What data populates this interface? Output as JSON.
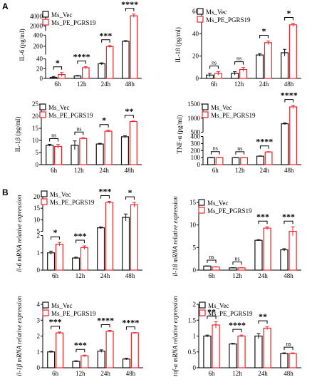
{
  "panel_labels": [
    "A",
    "B"
  ],
  "colors": {
    "vec": "#111111",
    "pe": "#e8262a"
  },
  "legend": {
    "vec": "Ms_Vec",
    "pe": "Ms_PE_PGRS19"
  },
  "chart_data": [
    {
      "type": "bar",
      "id": "il6",
      "ylabel": "IL-6 (pg/ml)",
      "categories": [
        "6h",
        "12h",
        "24h",
        "48h"
      ],
      "series": [
        {
          "name": "Ms_Vec",
          "values": [
            2,
            5,
            30,
            290
          ],
          "errors": [
            2,
            1,
            2,
            12
          ]
        },
        {
          "name": "Ms_PE_PGRS19",
          "values": [
            8,
            22,
            195,
            4100
          ],
          "errors": [
            4,
            2,
            20,
            350
          ]
        }
      ],
      "y_break": {
        "segments": [
          [
            0,
            40
          ],
          [
            50,
            400
          ],
          [
            1000,
            5000
          ]
        ]
      },
      "yticks": [
        0,
        20,
        40,
        200,
        400,
        2000,
        4000
      ],
      "significance": [
        "*",
        "****",
        "***",
        "****"
      ]
    },
    {
      "type": "bar",
      "id": "il18",
      "ylabel": "IL-18 (pg/ml)",
      "categories": [
        "6h",
        "12h",
        "24h",
        "48h"
      ],
      "series": [
        {
          "name": "Ms_Vec",
          "values": [
            3,
            4.5,
            21,
            23
          ],
          "errors": [
            1.5,
            1.5,
            1.2,
            3
          ]
        },
        {
          "name": "Ms_PE_PGRS19",
          "values": [
            4.5,
            8,
            32,
            48
          ],
          "errors": [
            1.5,
            1.8,
            1.5,
            1.5
          ]
        }
      ],
      "ylim": [
        0,
        60
      ],
      "yticks": [
        0,
        20,
        40,
        60
      ],
      "significance": [
        "ns",
        "ns",
        "*",
        "*"
      ]
    },
    {
      "type": "bar",
      "id": "il1b",
      "ylabel": "IL-1β (pg/ml)",
      "categories": [
        "6h",
        "12h",
        "24h",
        "48h"
      ],
      "series": [
        {
          "name": "Ms_Vec",
          "values": [
            8,
            8,
            8.5,
            11.5
          ],
          "errors": [
            0.4,
            1.8,
            0.3,
            0.4
          ]
        },
        {
          "name": "Ms_PE_PGRS19",
          "values": [
            7.5,
            10.8,
            13.8,
            17.8
          ],
          "errors": [
            0.8,
            0.3,
            0.4,
            0.2
          ]
        }
      ],
      "ylim": [
        0,
        25
      ],
      "yticks": [
        0,
        5,
        10,
        15,
        20,
        25
      ],
      "significance": [
        "ns",
        "ns",
        "*",
        "**"
      ]
    },
    {
      "type": "bar",
      "id": "tnf",
      "ylabel": "TNF-α (pg/ml)",
      "categories": [
        "6h",
        "12h",
        "24h",
        "48h"
      ],
      "series": [
        {
          "name": "Ms_Vec",
          "values": [
            100,
            100,
            120,
            800
          ],
          "errors": [
            4,
            3,
            4,
            30
          ]
        },
        {
          "name": "Ms_PE_PGRS19",
          "values": [
            100,
            100,
            180,
            1400
          ],
          "errors": [
            3,
            3,
            5,
            60
          ]
        }
      ],
      "y_break": {
        "segments": [
          [
            0,
            400
          ],
          [
            500,
            1500
          ]
        ]
      },
      "yticks": [
        0,
        100,
        200,
        300,
        400,
        500,
        1000,
        1500
      ],
      "significance": [
        "ns",
        "ns",
        "****",
        "****"
      ]
    },
    {
      "type": "bar",
      "id": "il6mrna",
      "ylabel": "il-6 mRNA relative expression",
      "categories": [
        "6h",
        "12h",
        "24h",
        "48h"
      ],
      "series": [
        {
          "name": "Ms_Vec",
          "values": [
            1.0,
            0.7,
            6.5,
            11.0
          ],
          "errors": [
            0.1,
            0.05,
            0.4,
            1.5
          ]
        },
        {
          "name": "Ms_PE_PGRS19",
          "values": [
            1.5,
            1.3,
            17.5,
            16.5
          ],
          "errors": [
            0.1,
            0.1,
            0.5,
            1.0
          ]
        }
      ],
      "y_break": {
        "segments": [
          [
            0,
            2
          ],
          [
            5,
            20
          ]
        ]
      },
      "yticks": [
        0,
        1,
        2,
        5,
        10,
        15,
        20
      ],
      "significance": [
        "*",
        "***",
        "***",
        "*"
      ]
    },
    {
      "type": "bar",
      "id": "il18mrna",
      "ylabel": "il-18 mRNA relative expression",
      "categories": [
        "6h",
        "12h",
        "24h",
        "48h"
      ],
      "series": [
        {
          "name": "Ms_Vec",
          "values": [
            0.9,
            0.5,
            6.6,
            4.5
          ],
          "errors": [
            0.05,
            0.05,
            0.15,
            0.25
          ]
        },
        {
          "name": "Ms_PE_PGRS19",
          "values": [
            0.7,
            0.5,
            9.3,
            8.6
          ],
          "errors": [
            0.05,
            0.05,
            0.3,
            1.0
          ]
        }
      ],
      "ylim": [
        0,
        15
      ],
      "yticks": [
        0,
        5,
        10,
        15
      ],
      "significance": [
        "ns",
        "ns",
        "***",
        "***"
      ]
    },
    {
      "type": "bar",
      "id": "il1bmrna",
      "ylabel": "il-1β mRNA relative expression",
      "categories": [
        "6h",
        "12h",
        "24h",
        "48h"
      ],
      "series": [
        {
          "name": "Ms_Vec",
          "values": [
            1.0,
            0.4,
            1.05,
            0.55
          ],
          "errors": [
            0.05,
            0.04,
            0.08,
            0.05
          ]
        },
        {
          "name": "Ms_PE_PGRS19",
          "values": [
            2.2,
            0.75,
            2.3,
            2.2
          ],
          "errors": [
            0.06,
            0.05,
            0.06,
            0.02
          ]
        }
      ],
      "ylim": [
        0,
        4
      ],
      "yticks": [
        0,
        1,
        2,
        3,
        4
      ],
      "significance": [
        "***",
        "***",
        "****",
        "****"
      ]
    },
    {
      "type": "bar",
      "id": "tnfmrna",
      "ylabel": "tnf-α mRNA relative expression",
      "categories": [
        "6h",
        "12h",
        "24h",
        "48h"
      ],
      "series": [
        {
          "name": "Ms_Vec",
          "values": [
            1.0,
            0.75,
            1.0,
            0.45
          ],
          "errors": [
            0.03,
            0.02,
            0.08,
            0.02
          ]
        },
        {
          "name": "Ms_PE_PGRS19",
          "values": [
            1.35,
            1.0,
            1.25,
            0.45
          ],
          "errors": [
            0.1,
            0.03,
            0.05,
            0.02
          ]
        }
      ],
      "ylim": [
        0,
        2.0
      ],
      "yticks": [
        0.0,
        0.5,
        1.0,
        1.5,
        2.0
      ],
      "significance": [
        "**",
        "****",
        "**",
        "ns"
      ]
    }
  ]
}
